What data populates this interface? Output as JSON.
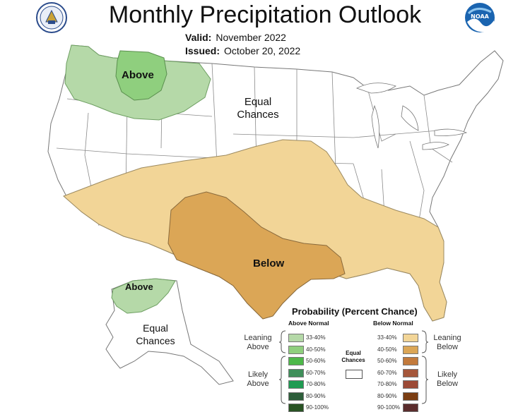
{
  "title": "Monthly Precipitation Outlook",
  "valid": {
    "label": "Valid:",
    "value": "November 2022"
  },
  "issued": {
    "label": "Issued:",
    "value": "October 20, 2022"
  },
  "logos": {
    "left": "doc-seal-icon",
    "right": "noaa-logo-icon",
    "right_text": "NOAA"
  },
  "map_labels": {
    "above_nw": "Above",
    "equal_conus": [
      "Equal",
      "Chances"
    ],
    "below": "Below",
    "above_alaska": "Above",
    "equal_alaska": [
      "Equal",
      "Chances"
    ]
  },
  "colors": {
    "above_33_40": "#b5d9a8",
    "above_40_50": "#8fcf7e",
    "below_33_40": "#f2d597",
    "below_40_50": "#dba656",
    "border": "#777777"
  },
  "legend": {
    "title": "Probability (Percent Chance)",
    "above_header": "Above Normal",
    "below_header": "Below Normal",
    "equal_label": [
      "Equal",
      "Chances"
    ],
    "leaning_above": [
      "Leaning",
      "Above"
    ],
    "likely_above": [
      "Likely",
      "Above"
    ],
    "leaning_below": [
      "Leaning",
      "Below"
    ],
    "likely_below": [
      "Likely",
      "Below"
    ],
    "above": [
      {
        "range": "33-40%",
        "color": "#b5d9a8"
      },
      {
        "range": "40-50%",
        "color": "#8fcf7e"
      },
      {
        "range": "50-60%",
        "color": "#4db849"
      },
      {
        "range": "60-70%",
        "color": "#3f8f5a"
      },
      {
        "range": "70-80%",
        "color": "#1f9b52"
      },
      {
        "range": "80-90%",
        "color": "#2d5e3a"
      },
      {
        "range": "90-100%",
        "color": "#285223"
      }
    ],
    "below": [
      {
        "range": "33-40%",
        "color": "#f2d597"
      },
      {
        "range": "40-50%",
        "color": "#dba656"
      },
      {
        "range": "50-60%",
        "color": "#c27a3c"
      },
      {
        "range": "60-70%",
        "color": "#a5573b"
      },
      {
        "range": "70-80%",
        "color": "#9c4a36"
      },
      {
        "range": "80-90%",
        "color": "#7a3d12"
      },
      {
        "range": "90-100%",
        "color": "#5a2c2c"
      }
    ]
  }
}
